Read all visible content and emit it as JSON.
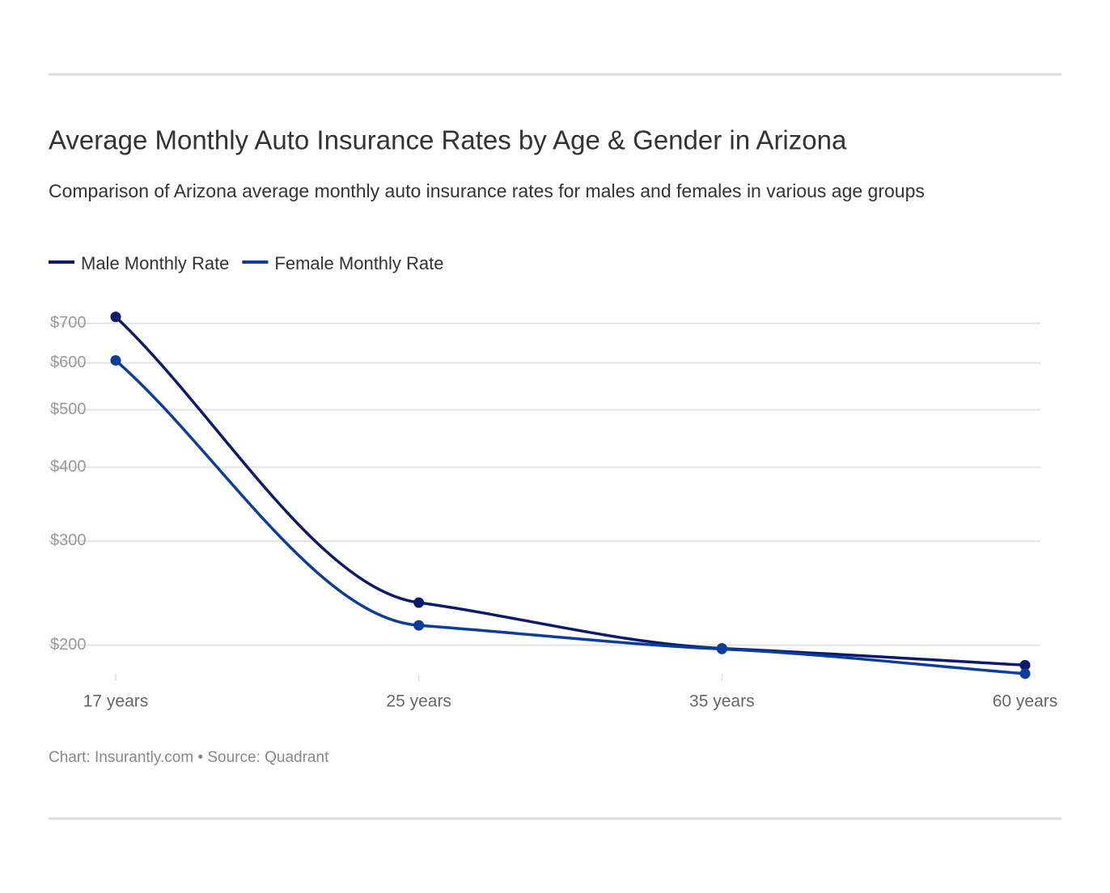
{
  "chart_data": {
    "type": "line",
    "title": "Average Monthly Auto Insurance Rates by Age & Gender in Arizona",
    "subtitle": "Comparison of Arizona average monthly auto insurance rates for males and females in various age groups",
    "categories": [
      "17 years",
      "25 years",
      "35 years",
      "60 years"
    ],
    "series": [
      {
        "name": "Male Monthly Rate",
        "color": "#0c1a6b",
        "values": [
          718,
          236,
          197.5,
          185
        ]
      },
      {
        "name": "Female Monthly Rate",
        "color": "#0a3d9c",
        "values": [
          606,
          216,
          197,
          179
        ]
      }
    ],
    "ylim": [
      175,
      745
    ],
    "log_scale": true,
    "yticks": [
      {
        "value": 200,
        "label": "$200"
      },
      {
        "value": 300,
        "label": "$300"
      },
      {
        "value": 400,
        "label": "$400"
      },
      {
        "value": 500,
        "label": "$500"
      },
      {
        "value": 600,
        "label": "$600"
      },
      {
        "value": 700,
        "label": "$700"
      }
    ],
    "grid": true,
    "legend": "top-left",
    "footer": "Chart: Insurantly.com • Source: Quadrant"
  }
}
